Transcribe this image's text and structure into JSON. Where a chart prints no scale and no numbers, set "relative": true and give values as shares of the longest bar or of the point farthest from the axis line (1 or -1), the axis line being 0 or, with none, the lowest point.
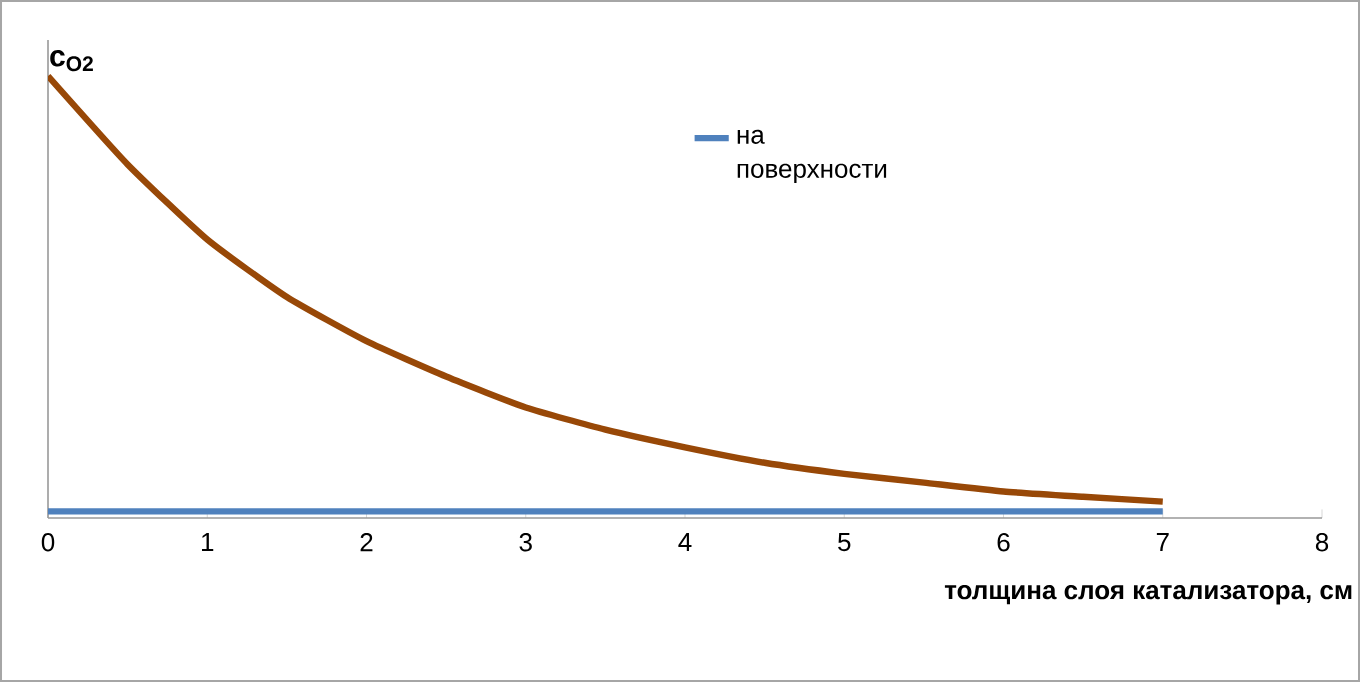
{
  "chart_data": {
    "type": "line",
    "relative": true,
    "ylabel": "c$_{O2}$",
    "xlabel": "толщина слоя катализатора, см",
    "xlim": [
      0,
      8
    ],
    "xticks": [
      0,
      1,
      2,
      3,
      4,
      5,
      6,
      7,
      8
    ],
    "legend": "top",
    "grid": false,
    "marker": "none",
    "line_style": "solid",
    "series": [
      {
        "name": "на поверхности",
        "color": "#4f81bd",
        "x": [
          0,
          7
        ],
        "values": [
          0.015,
          0.015
        ]
      },
      {
        "color": "#984807",
        "x": [
          0,
          0.5,
          1,
          1.5,
          2,
          2.5,
          3,
          3.5,
          4,
          4.5,
          5,
          5.5,
          6,
          6.5,
          7
        ],
        "values": [
          1,
          0.8,
          0.63,
          0.5,
          0.4,
          0.32,
          0.25,
          0.2,
          0.16,
          0.125,
          0.1,
          0.08,
          0.06,
          0.048,
          0.037
        ]
      }
    ]
  }
}
